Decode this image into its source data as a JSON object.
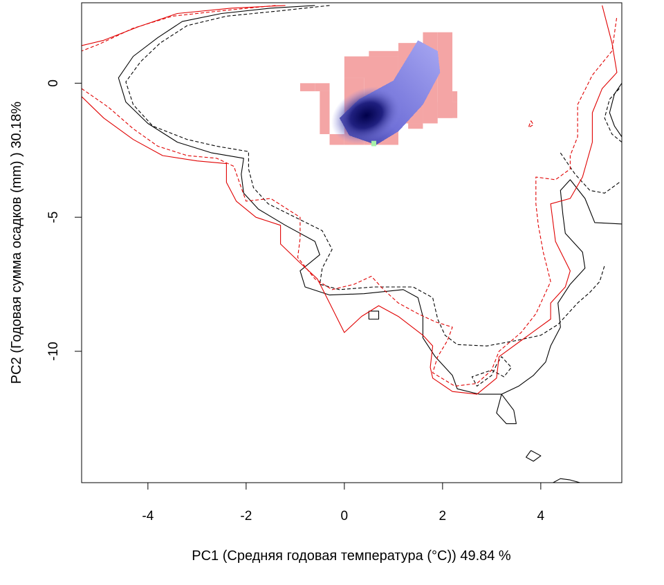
{
  "chart_data": {
    "type": "heatmap",
    "xlabel": "PC1 (Средняя годовая температура (°C)) 49.84 %",
    "ylabel": "PC2 (Годовая сумма осадков  (mm) ) 30.18%",
    "xlim": [
      -5.35,
      5.65
    ],
    "ylim": [
      -14.9,
      3.0
    ],
    "x_ticks": [
      -4,
      -2,
      0,
      2,
      4
    ],
    "x_tick_labels": [
      "-4",
      "-2",
      "0",
      "2",
      "4"
    ],
    "y_ticks": [
      0,
      -5,
      -10
    ],
    "y_tick_labels": [
      "0",
      "-5",
      "-10"
    ],
    "grid": false,
    "legend": "none",
    "colors": {
      "pink_region": "#f4a5a5",
      "density_low": "#a4a4f0",
      "density_high": "#00004a",
      "green_cell": "#a8f0a8",
      "contour_black": "#000000",
      "contour_red": "#e00000"
    },
    "raster": {
      "cell_size": [
        0.1,
        0.2
      ],
      "pink_region": [
        [
          -0.9,
          -0.6,
          -0.3,
          0.0
        ],
        [
          -0.9,
          -1.1,
          -0.3,
          0.0
        ],
        [
          -0.6,
          -0.3,
          -0.3,
          0.0
        ],
        [
          -0.5,
          -0.3,
          -1.9,
          -0.3
        ],
        [
          -0.3,
          0.0,
          -2.3,
          -1.9
        ],
        [
          0.0,
          0.4,
          -2.3,
          0.2
        ],
        [
          0.0,
          0.5,
          0.2,
          1.0
        ],
        [
          0.4,
          1.1,
          -2.3,
          1.0
        ],
        [
          0.5,
          1.1,
          1.0,
          1.2
        ],
        [
          1.1,
          1.6,
          -1.5,
          1.5
        ],
        [
          1.6,
          1.9,
          -1.5,
          1.9
        ],
        [
          1.9,
          2.2,
          -1.3,
          1.9
        ],
        [
          1.9,
          2.3,
          -1.3,
          -0.7
        ],
        [
          1.3,
          1.6,
          -1.7,
          -1.5
        ],
        [
          2.2,
          2.3,
          -0.7,
          -0.3
        ]
      ],
      "density_core_center": [
        0.45,
        -1.2
      ],
      "density_axis_end": [
        1.75,
        1.5
      ],
      "green_cell": [
        0.6,
        -2.25
      ]
    },
    "contours": [
      {
        "color": "black",
        "style": "solid",
        "points": [
          [
            -0.6,
            2.9
          ],
          [
            -1.5,
            2.8
          ],
          [
            -2.5,
            2.6
          ],
          [
            -3.3,
            2.3
          ],
          [
            -3.8,
            1.7
          ],
          [
            -4.3,
            1.0
          ],
          [
            -4.6,
            0.2
          ],
          [
            -4.45,
            -0.7
          ],
          [
            -4.0,
            -1.5
          ],
          [
            -3.4,
            -2.2
          ],
          [
            -2.7,
            -2.6
          ],
          [
            -2.05,
            -2.8
          ],
          [
            -2.1,
            -3.4
          ],
          [
            -2.05,
            -4.1
          ],
          [
            -1.75,
            -4.7
          ],
          [
            -1.2,
            -5.3
          ],
          [
            -0.6,
            -5.9
          ],
          [
            -0.5,
            -6.4
          ],
          [
            -0.9,
            -7.0
          ],
          [
            -0.8,
            -7.6
          ],
          [
            -0.3,
            -7.9
          ],
          [
            0.4,
            -7.85
          ],
          [
            1.2,
            -7.7
          ],
          [
            1.5,
            -8.0
          ],
          [
            1.6,
            -8.7
          ],
          [
            1.6,
            -9.5
          ],
          [
            1.85,
            -10.2
          ],
          [
            2.2,
            -10.9
          ],
          [
            2.3,
            -11.4
          ],
          [
            2.75,
            -11.6
          ],
          [
            3.2,
            -11.6
          ],
          [
            3.55,
            -11.3
          ],
          [
            3.85,
            -10.9
          ],
          [
            4.1,
            -10.4
          ],
          [
            4.2,
            -9.8
          ],
          [
            4.4,
            -9.1
          ],
          [
            4.35,
            -8.2
          ],
          [
            4.6,
            -7.5
          ],
          [
            4.9,
            -6.9
          ],
          [
            4.85,
            -6.3
          ],
          [
            4.5,
            -5.6
          ],
          [
            4.45,
            -4.9
          ],
          [
            4.4,
            -4.0
          ],
          [
            4.6,
            -3.6
          ],
          [
            4.9,
            -4.3
          ],
          [
            5.1,
            -5.2
          ],
          [
            5.65,
            -5.25
          ]
        ]
      },
      {
        "color": "black",
        "style": "dashed",
        "points": [
          [
            -0.3,
            2.9
          ],
          [
            -1.3,
            2.7
          ],
          [
            -2.4,
            2.5
          ],
          [
            -3.2,
            2.15
          ],
          [
            -3.75,
            1.5
          ],
          [
            -4.15,
            0.8
          ],
          [
            -4.45,
            0.05
          ],
          [
            -4.3,
            -0.8
          ],
          [
            -3.9,
            -1.6
          ],
          [
            -3.2,
            -2.1
          ],
          [
            -2.6,
            -2.35
          ],
          [
            -1.95,
            -2.55
          ],
          [
            -1.95,
            -3.2
          ],
          [
            -1.85,
            -3.9
          ],
          [
            -1.55,
            -4.5
          ],
          [
            -1.0,
            -5.0
          ],
          [
            -0.45,
            -5.5
          ],
          [
            -0.25,
            -6.2
          ],
          [
            -0.45,
            -6.9
          ],
          [
            -0.5,
            -7.5
          ],
          [
            -0.1,
            -7.7
          ],
          [
            0.6,
            -7.6
          ],
          [
            1.4,
            -7.6
          ],
          [
            1.8,
            -8.0
          ],
          [
            1.9,
            -8.8
          ],
          [
            2.05,
            -9.4
          ],
          [
            2.3,
            -9.75
          ],
          [
            2.9,
            -9.8
          ],
          [
            3.5,
            -9.6
          ],
          [
            4.0,
            -9.4
          ],
          [
            4.35,
            -9.0
          ],
          [
            4.75,
            -8.2
          ],
          [
            5.0,
            -7.8
          ],
          [
            5.2,
            -7.4
          ],
          [
            5.3,
            -6.8
          ]
        ]
      },
      {
        "color": "black",
        "style": "dashed",
        "points": [
          [
            4.4,
            -2.6
          ],
          [
            4.7,
            -3.4
          ],
          [
            5.0,
            -4.0
          ],
          [
            5.3,
            -4.1
          ],
          [
            5.6,
            -3.7
          ]
        ]
      },
      {
        "color": "black",
        "style": "dashed",
        "points": [
          [
            5.65,
            -2.2
          ],
          [
            5.45,
            -1.9
          ],
          [
            5.3,
            -1.3
          ],
          [
            5.4,
            -0.6
          ],
          [
            5.6,
            -0.2
          ]
        ]
      },
      {
        "color": "black",
        "style": "solid",
        "points": [
          [
            5.65,
            -2.0
          ],
          [
            5.5,
            -1.6
          ],
          [
            5.4,
            -1.1
          ],
          [
            5.5,
            -0.4
          ],
          [
            5.65,
            0.0
          ]
        ]
      },
      {
        "color": "black",
        "style": "dashed",
        "points": [
          [
            3.1,
            -10.5
          ],
          [
            3.0,
            -10.9
          ],
          [
            2.7,
            -11.3
          ],
          [
            2.6,
            -10.95
          ],
          [
            3.0,
            -10.7
          ],
          [
            3.25,
            -10.95
          ],
          [
            3.4,
            -10.6
          ],
          [
            3.2,
            -10.2
          ],
          [
            3.1,
            -10.5
          ]
        ]
      },
      {
        "color": "black",
        "style": "solid",
        "points": [
          [
            3.2,
            -11.6
          ],
          [
            3.45,
            -12.2
          ],
          [
            3.5,
            -12.7
          ],
          [
            3.3,
            -12.7
          ],
          [
            3.1,
            -12.3
          ],
          [
            3.2,
            -11.6
          ]
        ]
      },
      {
        "color": "black",
        "style": "solid",
        "points": [
          [
            3.8,
            -13.7
          ],
          [
            4.0,
            -13.9
          ],
          [
            3.85,
            -14.1
          ],
          [
            3.7,
            -13.95
          ],
          [
            3.8,
            -13.7
          ]
        ]
      },
      {
        "color": "black",
        "style": "solid",
        "points": [
          [
            4.25,
            -14.9
          ],
          [
            4.4,
            -14.75
          ],
          [
            4.6,
            -14.8
          ],
          [
            4.8,
            -14.9
          ]
        ]
      },
      {
        "color": "black",
        "style": "solid",
        "points": [
          [
            0.5,
            -8.5
          ],
          [
            0.7,
            -8.5
          ],
          [
            0.7,
            -8.8
          ],
          [
            0.5,
            -8.8
          ],
          [
            0.5,
            -8.5
          ]
        ]
      },
      {
        "color": "red",
        "style": "solid",
        "points": [
          [
            -1.2,
            2.9
          ],
          [
            -2.3,
            2.8
          ],
          [
            -3.4,
            2.6
          ],
          [
            -4.2,
            2.1
          ],
          [
            -4.9,
            1.6
          ],
          [
            -5.35,
            1.4
          ]
        ]
      },
      {
        "color": "red",
        "style": "dashed",
        "points": [
          [
            -1.4,
            2.9
          ],
          [
            -2.5,
            2.7
          ],
          [
            -3.5,
            2.5
          ],
          [
            -4.3,
            2.05
          ],
          [
            -5.0,
            1.45
          ],
          [
            -5.35,
            1.2
          ]
        ]
      },
      {
        "color": "red",
        "style": "solid",
        "points": [
          [
            -5.35,
            -0.5
          ],
          [
            -4.9,
            -1.3
          ],
          [
            -4.3,
            -2.1
          ],
          [
            -3.7,
            -2.7
          ],
          [
            -3.0,
            -2.9
          ],
          [
            -2.4,
            -3.0
          ],
          [
            -2.4,
            -3.7
          ],
          [
            -2.2,
            -4.4
          ],
          [
            -1.8,
            -5.0
          ],
          [
            -1.3,
            -5.3
          ],
          [
            -1.3,
            -6.0
          ],
          [
            -0.9,
            -6.7
          ],
          [
            -0.55,
            -7.3
          ],
          [
            -0.3,
            -8.2
          ],
          [
            0.0,
            -9.3
          ],
          [
            0.35,
            -8.7
          ],
          [
            0.7,
            -8.3
          ],
          [
            1.1,
            -8.7
          ],
          [
            1.6,
            -9.4
          ],
          [
            1.8,
            -9.8
          ],
          [
            1.75,
            -10.6
          ],
          [
            1.8,
            -11.0
          ],
          [
            2.2,
            -11.5
          ],
          [
            2.7,
            -11.6
          ],
          [
            3.1,
            -11.0
          ],
          [
            3.15,
            -10.2
          ],
          [
            3.6,
            -9.6
          ],
          [
            4.2,
            -8.8
          ],
          [
            4.2,
            -8.2
          ],
          [
            4.5,
            -7.6
          ],
          [
            4.6,
            -7.0
          ],
          [
            4.3,
            -5.9
          ],
          [
            4.2,
            -4.5
          ],
          [
            4.6,
            -4.3
          ],
          [
            4.85,
            -3.5
          ],
          [
            5.05,
            -2.2
          ],
          [
            5.05,
            -1.1
          ],
          [
            5.25,
            -0.2
          ],
          [
            5.55,
            0.4
          ],
          [
            5.45,
            1.5
          ],
          [
            5.25,
            2.9
          ]
        ]
      },
      {
        "color": "red",
        "style": "dashed",
        "points": [
          [
            -5.35,
            -0.2
          ],
          [
            -4.8,
            -0.9
          ],
          [
            -4.3,
            -1.7
          ],
          [
            -3.8,
            -2.35
          ],
          [
            -3.2,
            -2.7
          ],
          [
            -2.6,
            -2.8
          ],
          [
            -2.25,
            -3.1
          ],
          [
            -2.1,
            -3.9
          ],
          [
            -2.0,
            -4.4
          ],
          [
            -1.5,
            -4.3
          ],
          [
            -0.9,
            -5.0
          ],
          [
            -0.9,
            -5.8
          ],
          [
            -0.95,
            -6.5
          ],
          [
            -0.6,
            -7.3
          ],
          [
            -0.25,
            -7.7
          ],
          [
            0.2,
            -7.5
          ],
          [
            0.55,
            -7.2
          ],
          [
            0.8,
            -7.7
          ],
          [
            1.1,
            -8.2
          ],
          [
            1.5,
            -8.6
          ],
          [
            1.85,
            -8.9
          ],
          [
            2.2,
            -9.1
          ],
          [
            2.1,
            -9.6
          ],
          [
            1.9,
            -10.2
          ],
          [
            1.8,
            -10.8
          ],
          [
            2.25,
            -11.3
          ],
          [
            2.7,
            -11.2
          ],
          [
            3.0,
            -10.7
          ],
          [
            3.15,
            -10.0
          ],
          [
            3.6,
            -9.3
          ],
          [
            3.9,
            -8.6
          ],
          [
            4.2,
            -7.4
          ],
          [
            4.05,
            -6.3
          ],
          [
            3.95,
            -5.3
          ],
          [
            3.9,
            -4.5
          ],
          [
            3.9,
            -3.5
          ],
          [
            4.3,
            -3.6
          ],
          [
            4.6,
            -3.2
          ],
          [
            4.6,
            -2.7
          ],
          [
            4.75,
            -2.0
          ],
          [
            4.75,
            -0.8
          ],
          [
            5.05,
            0.3
          ],
          [
            5.45,
            1.2
          ],
          [
            5.55,
            2.5
          ]
        ]
      },
      {
        "color": "red",
        "style": "dashed",
        "points": [
          [
            3.8,
            -1.4
          ],
          [
            3.85,
            -1.55
          ],
          [
            3.75,
            -1.65
          ],
          [
            3.8,
            -1.4
          ]
        ]
      }
    ]
  }
}
